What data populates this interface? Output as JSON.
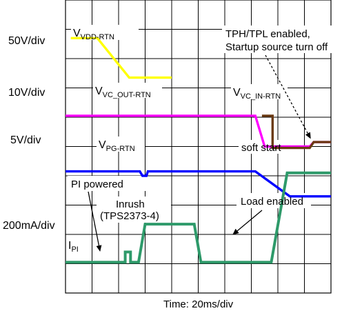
{
  "chart_data": {
    "type": "line",
    "xlabel": "Time: 20ms/div",
    "grid": true,
    "x_divisions": 10,
    "y_divisions": 10,
    "scales": [
      "50V/div",
      "10V/div",
      "5V/div",
      "200mA/div"
    ],
    "series": [
      {
        "name": "VVDD-RTN",
        "label_main": "V",
        "label_sub": "VDD-RTN",
        "color": "#ffff00",
        "points": [
          [
            0.2,
            1.3
          ],
          [
            1.2,
            1.3
          ],
          [
            2.4,
            2.65
          ],
          [
            4.0,
            2.65
          ]
        ]
      },
      {
        "name": "VVC_OUT-RTN",
        "label_main": "V",
        "label_sub": "VC_OUT-RTN",
        "color": "#ff00ff",
        "points": [
          [
            0,
            3.95
          ],
          [
            7.15,
            3.95
          ],
          [
            7.5,
            5.0
          ],
          [
            9.2,
            5.0
          ],
          [
            9.35,
            4.85
          ],
          [
            10.0,
            4.85
          ]
        ]
      },
      {
        "name": "VVC_IN-RTN",
        "label_main": "V",
        "label_sub": "VC_IN-RTN",
        "color": "#6b3a12",
        "points": [
          [
            7.4,
            3.95
          ],
          [
            7.8,
            3.95
          ],
          [
            7.8,
            5.05
          ],
          [
            9.2,
            5.05
          ],
          [
            9.35,
            4.85
          ],
          [
            10.0,
            4.85
          ]
        ]
      },
      {
        "name": "VPG-RTN",
        "label_main": "V",
        "label_sub": "PG-RTN",
        "color": "#0000ff",
        "points": [
          [
            0,
            5.85
          ],
          [
            2.8,
            5.85
          ],
          [
            2.9,
            6.0
          ],
          [
            3.05,
            6.0
          ],
          [
            3.1,
            5.85
          ],
          [
            7.15,
            5.85
          ],
          [
            8.45,
            6.7
          ],
          [
            10.0,
            6.7
          ]
        ]
      },
      {
        "name": "IPI",
        "label_main": "I",
        "label_sub": "PI",
        "color": "#2e9a6a",
        "points": [
          [
            0,
            8.95
          ],
          [
            2.25,
            8.95
          ],
          [
            2.25,
            8.6
          ],
          [
            2.45,
            8.6
          ],
          [
            2.45,
            8.95
          ],
          [
            2.75,
            8.95
          ],
          [
            3.0,
            7.65
          ],
          [
            4.85,
            7.65
          ],
          [
            5.1,
            8.95
          ],
          [
            7.75,
            8.95
          ],
          [
            8.35,
            5.9
          ],
          [
            10.0,
            5.9
          ]
        ]
      }
    ],
    "annotations": [
      {
        "id": "tph",
        "lines": [
          "TPH/TPL enabled,",
          "Startup source turn off"
        ],
        "target": [
          9.2,
          5.0
        ]
      },
      {
        "id": "softstart",
        "lines": [
          "soft start"
        ]
      },
      {
        "id": "pipowered",
        "lines": [
          "PI powered"
        ],
        "target": [
          2.3,
          8.8
        ]
      },
      {
        "id": "inrush",
        "lines": [
          "Inrush",
          "(TPS2373-4)"
        ]
      },
      {
        "id": "load",
        "lines": [
          "Load enabled"
        ],
        "target": [
          8.1,
          7.2
        ]
      }
    ]
  }
}
